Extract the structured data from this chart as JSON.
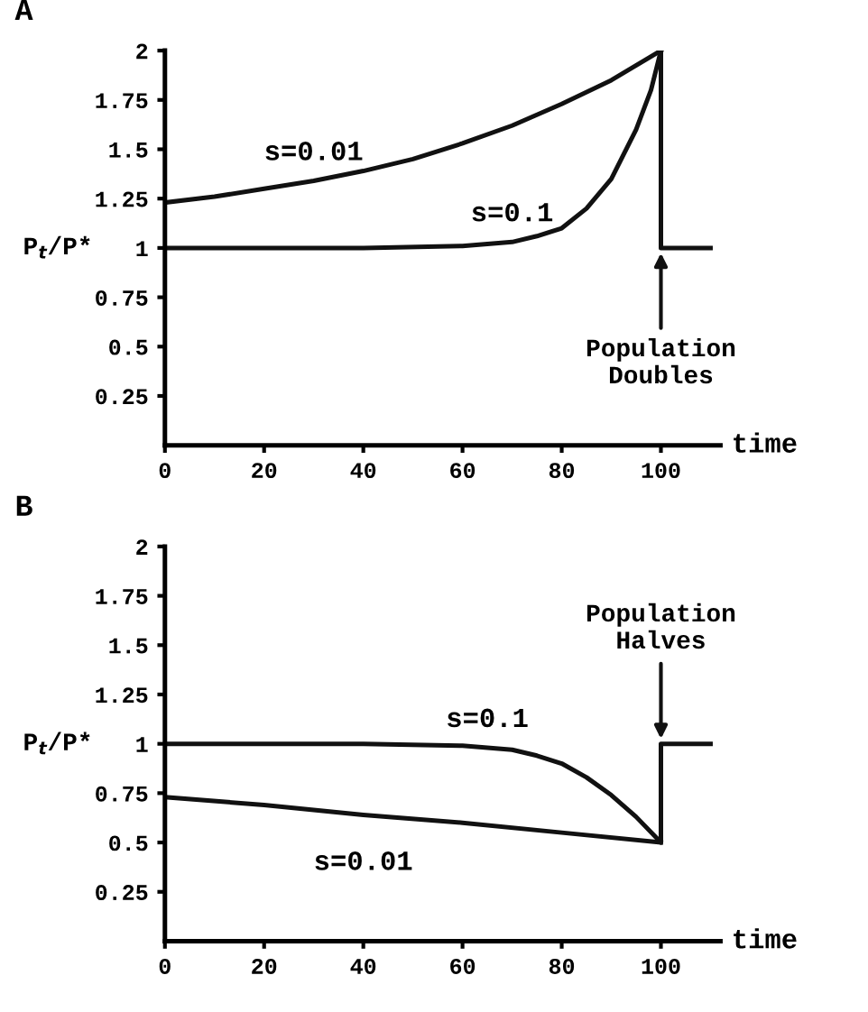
{
  "chart_data": [
    {
      "type": "line",
      "title": "A",
      "xlabel": "time",
      "ylabel": "P$_{t}$/P*",
      "xlim": [
        0,
        112
      ],
      "ylim": [
        0,
        2
      ],
      "xticks": [
        0,
        20,
        40,
        60,
        80,
        100
      ],
      "yticks": [
        0.25,
        0.5,
        0.75,
        1,
        1.25,
        1.5,
        1.75,
        2
      ],
      "grid": false,
      "legend": false,
      "marker": "none",
      "line_style": "solid",
      "series": [
        {
          "name": "s=0.01",
          "color": "#111111",
          "x": [
            0,
            10,
            20,
            30,
            40,
            50,
            60,
            70,
            80,
            90,
            100
          ],
          "values": [
            1.23,
            1.26,
            1.3,
            1.34,
            1.39,
            1.45,
            1.53,
            1.62,
            1.73,
            1.85,
            2
          ]
        },
        {
          "name": "s=0.1",
          "color": "#111111",
          "x": [
            0,
            20,
            40,
            60,
            65,
            70,
            75,
            80,
            85,
            90,
            95,
            98,
            100,
            100,
            110
          ],
          "values": [
            1,
            1,
            1,
            1.01,
            1.02,
            1.03,
            1.06,
            1.1,
            1.2,
            1.35,
            1.6,
            1.8,
            2,
            1,
            1
          ]
        }
      ],
      "annotations": [
        {
          "text": "Population\nDoubles",
          "x": 100,
          "y": 1
        }
      ]
    },
    {
      "type": "line",
      "title": "B",
      "xlabel": "time",
      "ylabel": "P$_{t}$/P*",
      "xlim": [
        0,
        112
      ],
      "ylim": [
        0,
        2
      ],
      "xticks": [
        0,
        20,
        40,
        60,
        80,
        100
      ],
      "yticks": [
        0.25,
        0.5,
        0.75,
        1,
        1.25,
        1.5,
        1.75,
        2
      ],
      "grid": false,
      "legend": false,
      "marker": "none",
      "line_style": "solid",
      "series": [
        {
          "name": "s=0.1",
          "color": "#111111",
          "x": [
            0,
            20,
            40,
            60,
            65,
            70,
            75,
            80,
            85,
            90,
            95,
            100,
            100,
            110
          ],
          "values": [
            1,
            1,
            1,
            0.99,
            0.98,
            0.97,
            0.94,
            0.9,
            0.83,
            0.74,
            0.63,
            0.5,
            1,
            1
          ]
        },
        {
          "name": "s=0.01",
          "color": "#111111",
          "x": [
            0,
            20,
            40,
            60,
            80,
            100
          ],
          "values": [
            0.73,
            0.69,
            0.64,
            0.6,
            0.55,
            0.5
          ]
        }
      ],
      "annotations": [
        {
          "text": "Population\nHalves",
          "x": 100,
          "y": 1
        }
      ]
    }
  ]
}
